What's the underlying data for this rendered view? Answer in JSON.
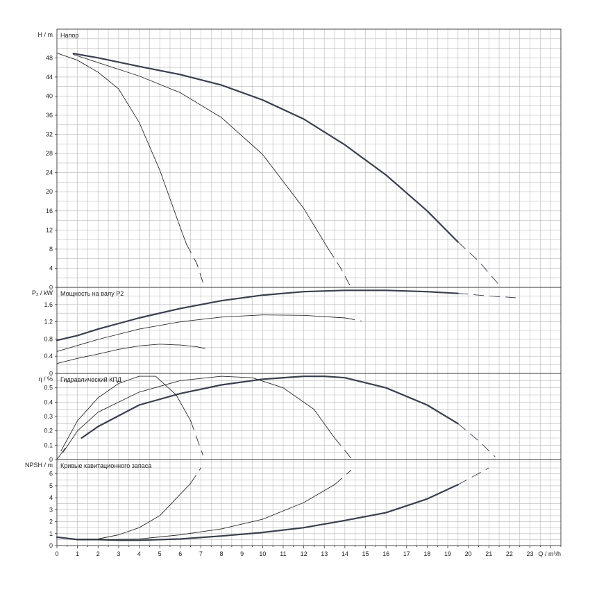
{
  "chart_data": {
    "type": "line",
    "x_axis": {
      "label": "Q / m³/h",
      "min": 0,
      "max": 24.5,
      "ticks": [
        0,
        1,
        2,
        3,
        4,
        5,
        6,
        7,
        8,
        9,
        10,
        11,
        12,
        13,
        14,
        15,
        16,
        17,
        18,
        19,
        20,
        21,
        22,
        23
      ],
      "grid_step": 0.5
    },
    "panels": [
      {
        "id": "head",
        "title": "Напор",
        "ylabel": "H / m",
        "ylim": [
          0,
          54
        ],
        "yticks": [
          0,
          4,
          8,
          12,
          16,
          20,
          24,
          28,
          32,
          36,
          40,
          44,
          48
        ],
        "grid_step": 2,
        "series": [
          {
            "weight": "thick",
            "solid": [
              [
                0.8,
                48.9
              ],
              [
                2,
                48
              ],
              [
                4,
                46.2
              ],
              [
                6,
                44.5
              ],
              [
                8,
                42.3
              ],
              [
                10,
                39.2
              ],
              [
                12,
                35.2
              ],
              [
                14,
                29.8
              ],
              [
                16,
                23.5
              ],
              [
                18,
                16
              ],
              [
                19.5,
                9.5
              ]
            ],
            "dashed": [
              [
                19.5,
                9.5
              ],
              [
                20.5,
                5.5
              ],
              [
                21.6,
                0
              ]
            ]
          },
          {
            "weight": "thin",
            "solid": [
              [
                0.8,
                48.7
              ],
              [
                2,
                47
              ],
              [
                4,
                44.2
              ],
              [
                6,
                40.7
              ],
              [
                8,
                35.5
              ],
              [
                10,
                27.8
              ],
              [
                12,
                16.5
              ],
              [
                13.2,
                8
              ]
            ],
            "dashed": [
              [
                13.2,
                8
              ],
              [
                13.8,
                4
              ],
              [
                14.3,
                0
              ]
            ]
          },
          {
            "weight": "thin",
            "solid": [
              [
                0,
                49
              ],
              [
                1,
                47.5
              ],
              [
                2,
                45
              ],
              [
                3,
                41.5
              ],
              [
                4,
                34.5
              ],
              [
                5,
                24.5
              ],
              [
                6,
                12.5
              ],
              [
                6.3,
                9
              ]
            ],
            "dashed": [
              [
                6.3,
                9
              ],
              [
                6.8,
                5
              ],
              [
                7.1,
                1
              ],
              [
                7.2,
                0
              ]
            ]
          }
        ]
      },
      {
        "id": "power",
        "title": "Мощность на валу P2",
        "ylabel": "P₂ / kW",
        "ylim": [
          0,
          2.0
        ],
        "yticks": [
          0,
          0.4,
          0.8,
          1.2,
          1.6
        ],
        "grid_step": 0.2,
        "series": [
          {
            "weight": "thick",
            "solid": [
              [
                0,
                0.77
              ],
              [
                1,
                0.88
              ],
              [
                2,
                1.03
              ],
              [
                4,
                1.29
              ],
              [
                6,
                1.51
              ],
              [
                8,
                1.69
              ],
              [
                10,
                1.82
              ],
              [
                12,
                1.9
              ],
              [
                14,
                1.93
              ],
              [
                16,
                1.93
              ],
              [
                18,
                1.9
              ],
              [
                19.5,
                1.86
              ]
            ],
            "dashed": [
              [
                19.5,
                1.86
              ],
              [
                21,
                1.8
              ],
              [
                22.3,
                1.76
              ]
            ]
          },
          {
            "weight": "thin",
            "solid": [
              [
                0,
                0.51
              ],
              [
                2,
                0.79
              ],
              [
                4,
                1.03
              ],
              [
                6,
                1.2
              ],
              [
                8,
                1.31
              ],
              [
                10,
                1.36
              ],
              [
                12,
                1.35
              ],
              [
                14,
                1.29
              ]
            ],
            "dashed": [
              [
                14,
                1.29
              ],
              [
                14.8,
                1.22
              ]
            ]
          },
          {
            "weight": "thin",
            "solid": [
              [
                0,
                0.23
              ],
              [
                1,
                0.35
              ],
              [
                2,
                0.45
              ],
              [
                3,
                0.56
              ],
              [
                4,
                0.64
              ],
              [
                5,
                0.68
              ],
              [
                6,
                0.66
              ],
              [
                6.8,
                0.62
              ]
            ],
            "dashed": [
              [
                6.8,
                0.62
              ],
              [
                7.2,
                0.58
              ]
            ]
          }
        ]
      },
      {
        "id": "efficiency",
        "title": "Гидравлический КПД",
        "ylabel": "η / %",
        "ylim": [
          0,
          0.6
        ],
        "yticks": [
          0,
          0.1,
          0.2,
          0.3,
          0.4,
          0.5
        ],
        "grid_step": 0.05,
        "series": [
          {
            "weight": "thick",
            "solid": [
              [
                1.2,
                0.15
              ],
              [
                2,
                0.23
              ],
              [
                4,
                0.38
              ],
              [
                6,
                0.46
              ],
              [
                8,
                0.52
              ],
              [
                10,
                0.56
              ],
              [
                12,
                0.58
              ],
              [
                13,
                0.58
              ],
              [
                14,
                0.57
              ],
              [
                16,
                0.5
              ],
              [
                18,
                0.38
              ],
              [
                19.5,
                0.25
              ]
            ],
            "dashed": [
              [
                19.5,
                0.25
              ],
              [
                20.5,
                0.13
              ],
              [
                21.3,
                0.02
              ]
            ]
          },
          {
            "weight": "thin",
            "solid": [
              [
                0.3,
                0.05
              ],
              [
                1,
                0.2
              ],
              [
                2,
                0.33
              ],
              [
                4,
                0.47
              ],
              [
                6,
                0.55
              ],
              [
                8,
                0.58
              ],
              [
                9.5,
                0.57
              ],
              [
                11,
                0.5
              ],
              [
                12.5,
                0.35
              ],
              [
                13.5,
                0.15
              ]
            ],
            "dashed": [
              [
                13.5,
                0.15
              ],
              [
                14.3,
                0.01
              ]
            ]
          },
          {
            "weight": "thin",
            "solid": [
              [
                0.2,
                0.06
              ],
              [
                1,
                0.27
              ],
              [
                2,
                0.43
              ],
              [
                3,
                0.53
              ],
              [
                4,
                0.58
              ],
              [
                4.8,
                0.58
              ],
              [
                5.8,
                0.45
              ],
              [
                6.5,
                0.27
              ]
            ],
            "dashed": [
              [
                6.5,
                0.27
              ],
              [
                7.1,
                0.03
              ]
            ]
          },
          {
            "weight": "thin",
            "solid": [
              [
                0,
                0
              ],
              [
                0.4,
                0.08
              ]
            ]
          }
        ]
      },
      {
        "id": "npsh",
        "title": "Кривые кавитационного запаса",
        "ylabel": "NPSH / m",
        "ylim": [
          0,
          7.2
        ],
        "yticks": [
          0,
          1,
          2,
          3,
          4,
          5,
          6
        ],
        "grid_step": 0.5,
        "series": [
          {
            "weight": "thick",
            "solid": [
              [
                0,
                0.7
              ],
              [
                1,
                0.5
              ],
              [
                2,
                0.5
              ],
              [
                3,
                0.45
              ],
              [
                4,
                0.45
              ],
              [
                6,
                0.55
              ],
              [
                8,
                0.8
              ],
              [
                10,
                1.1
              ],
              [
                12,
                1.5
              ],
              [
                14,
                2.1
              ],
              [
                16,
                2.75
              ],
              [
                18,
                3.9
              ],
              [
                19.5,
                5.1
              ]
            ],
            "dashed": [
              [
                19.5,
                5.1
              ],
              [
                21,
                6.5
              ]
            ]
          },
          {
            "weight": "thin",
            "solid": [
              [
                2,
                0.5
              ],
              [
                4,
                0.55
              ],
              [
                6,
                0.9
              ],
              [
                8,
                1.4
              ],
              [
                10,
                2.2
              ],
              [
                12,
                3.6
              ],
              [
                13.5,
                5.1
              ]
            ],
            "dashed": [
              [
                13.5,
                5.1
              ],
              [
                14.3,
                6.3
              ]
            ]
          },
          {
            "weight": "thin",
            "solid": [
              [
                0.8,
                0.55
              ],
              [
                2,
                0.55
              ],
              [
                3,
                0.9
              ],
              [
                4,
                1.5
              ],
              [
                5,
                2.5
              ],
              [
                6,
                4.3
              ],
              [
                6.5,
                5.2
              ]
            ],
            "dashed": [
              [
                6.5,
                5.2
              ],
              [
                7,
                6.5
              ]
            ]
          }
        ]
      }
    ]
  }
}
